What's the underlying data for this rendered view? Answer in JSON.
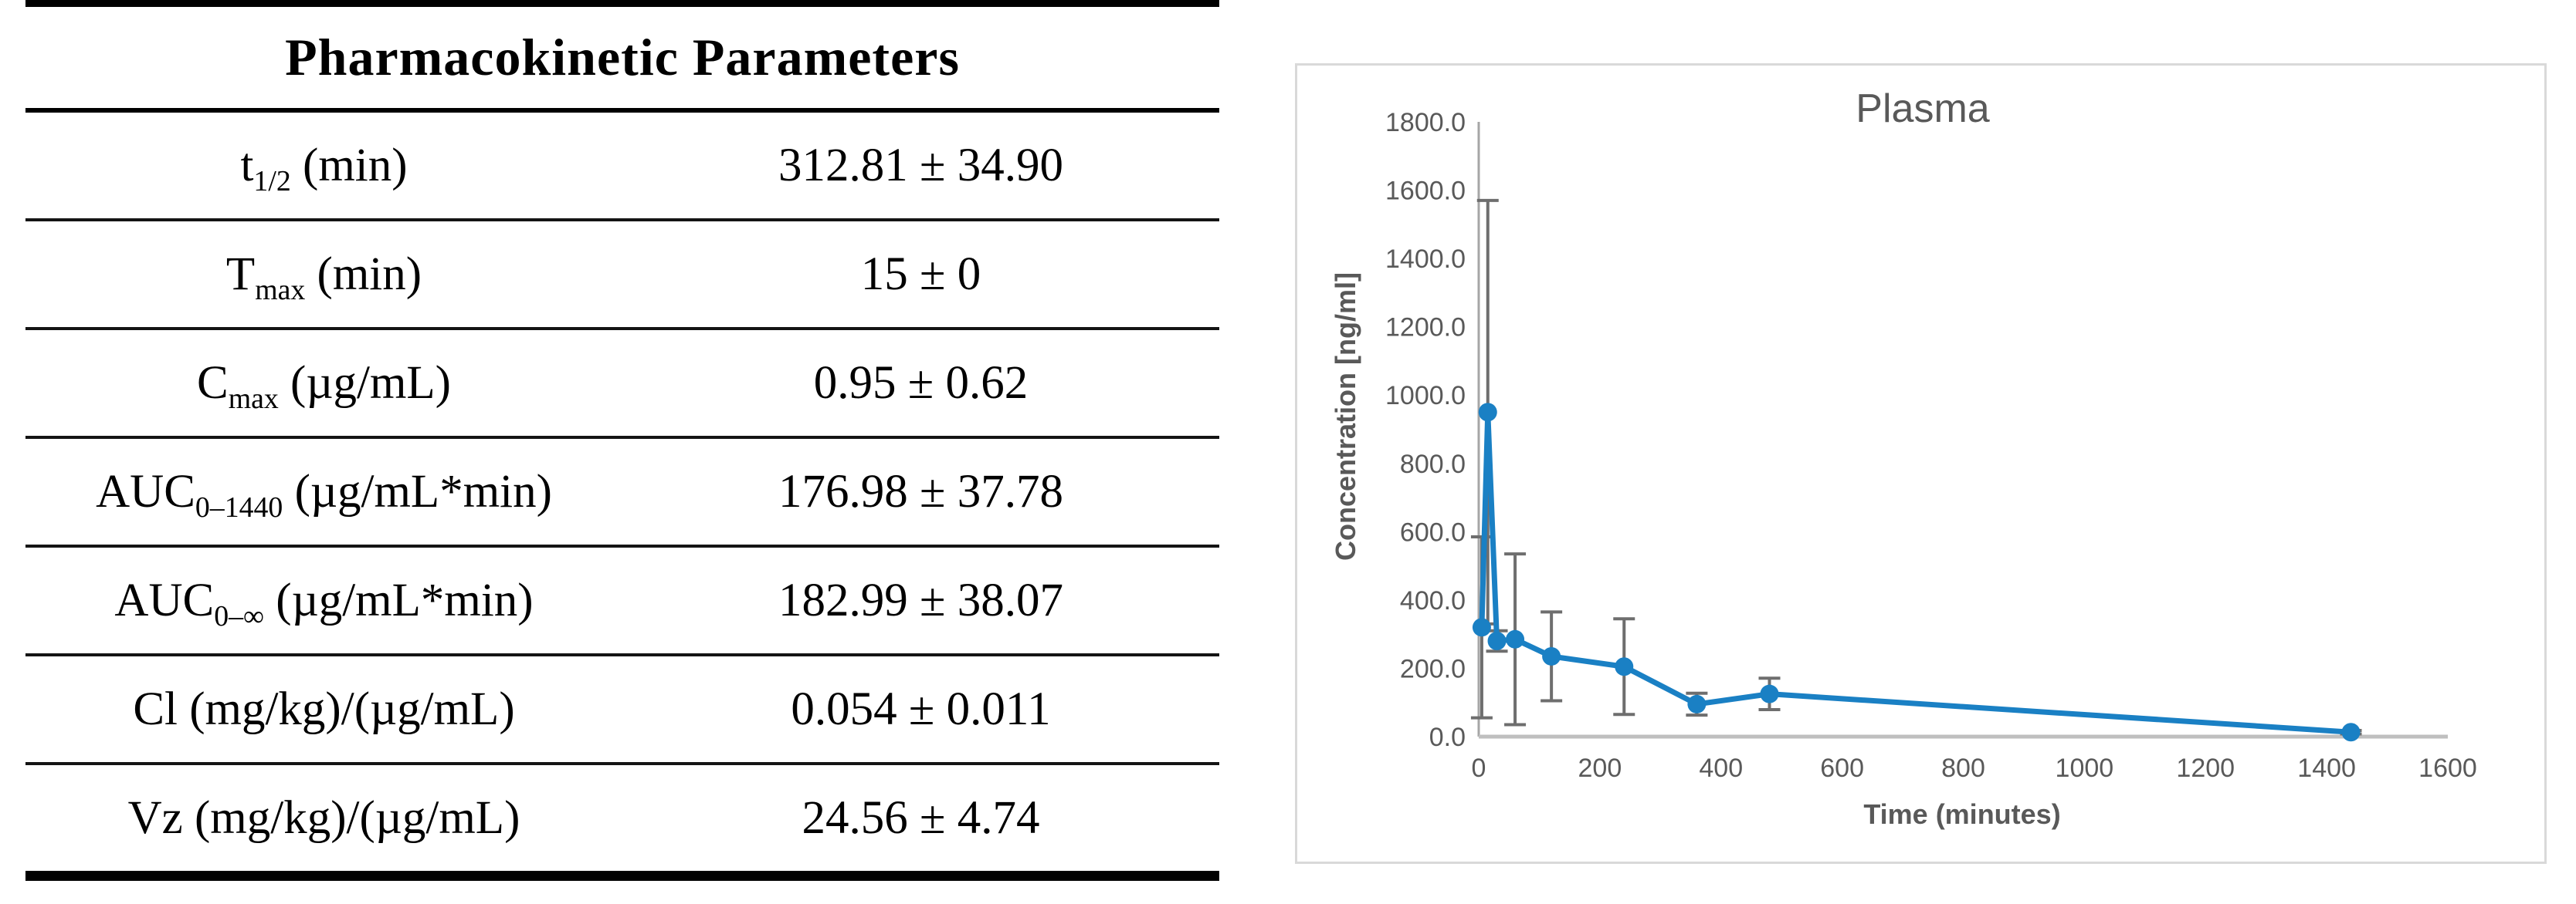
{
  "table": {
    "title": "Pharmacokinetic Parameters",
    "rows": [
      {
        "label": "t~1/2~ (min)",
        "value": "312.81 ± 34.90"
      },
      {
        "label": "T~max~ (min)",
        "value": "15 ± 0"
      },
      {
        "label": "C~max~ (µg/mL)",
        "value": "0.95 ± 0.62"
      },
      {
        "label": "AUC~0–1440~ (µg/mL*min)",
        "value": "176.98 ± 37.78"
      },
      {
        "label": "AUC~0–∞~ (µg/mL*min)",
        "value": "182.99 ± 38.07"
      },
      {
        "label": "Cl (mg/kg)/(µg/mL)",
        "value": "0.054 ± 0.011"
      },
      {
        "label": "Vz (mg/kg)/(µg/mL)",
        "value": "24.56 ± 4.74"
      }
    ]
  },
  "chart_data": {
    "type": "line",
    "title": "Plasma",
    "xlabel": "Time (minutes)",
    "ylabel": "Concentration [ng/ml]",
    "xlim": [
      0,
      1600
    ],
    "xstep": 200,
    "ylim": [
      0,
      1800
    ],
    "ystep": 200,
    "y_tick_decimals": 1,
    "grid": false,
    "legend": "none",
    "series": [
      {
        "name": "Plasma",
        "x": [
          5,
          15,
          30,
          60,
          120,
          240,
          360,
          480,
          1440
        ],
        "y": [
          320,
          950,
          280,
          285,
          235,
          205,
          95,
          125,
          13
        ],
        "yerr": [
          265,
          620,
          30,
          250,
          130,
          140,
          32,
          46,
          5
        ]
      }
    ],
    "colors": {
      "series": "#1a80c4",
      "error_bar": "#6e6e6e",
      "x_axis_line": "#bfbfbf",
      "y_axis_line": "#a6a6a6",
      "tick_text": "#595959",
      "title_text": "#595959",
      "panel_border": "#d9d9d9"
    }
  }
}
